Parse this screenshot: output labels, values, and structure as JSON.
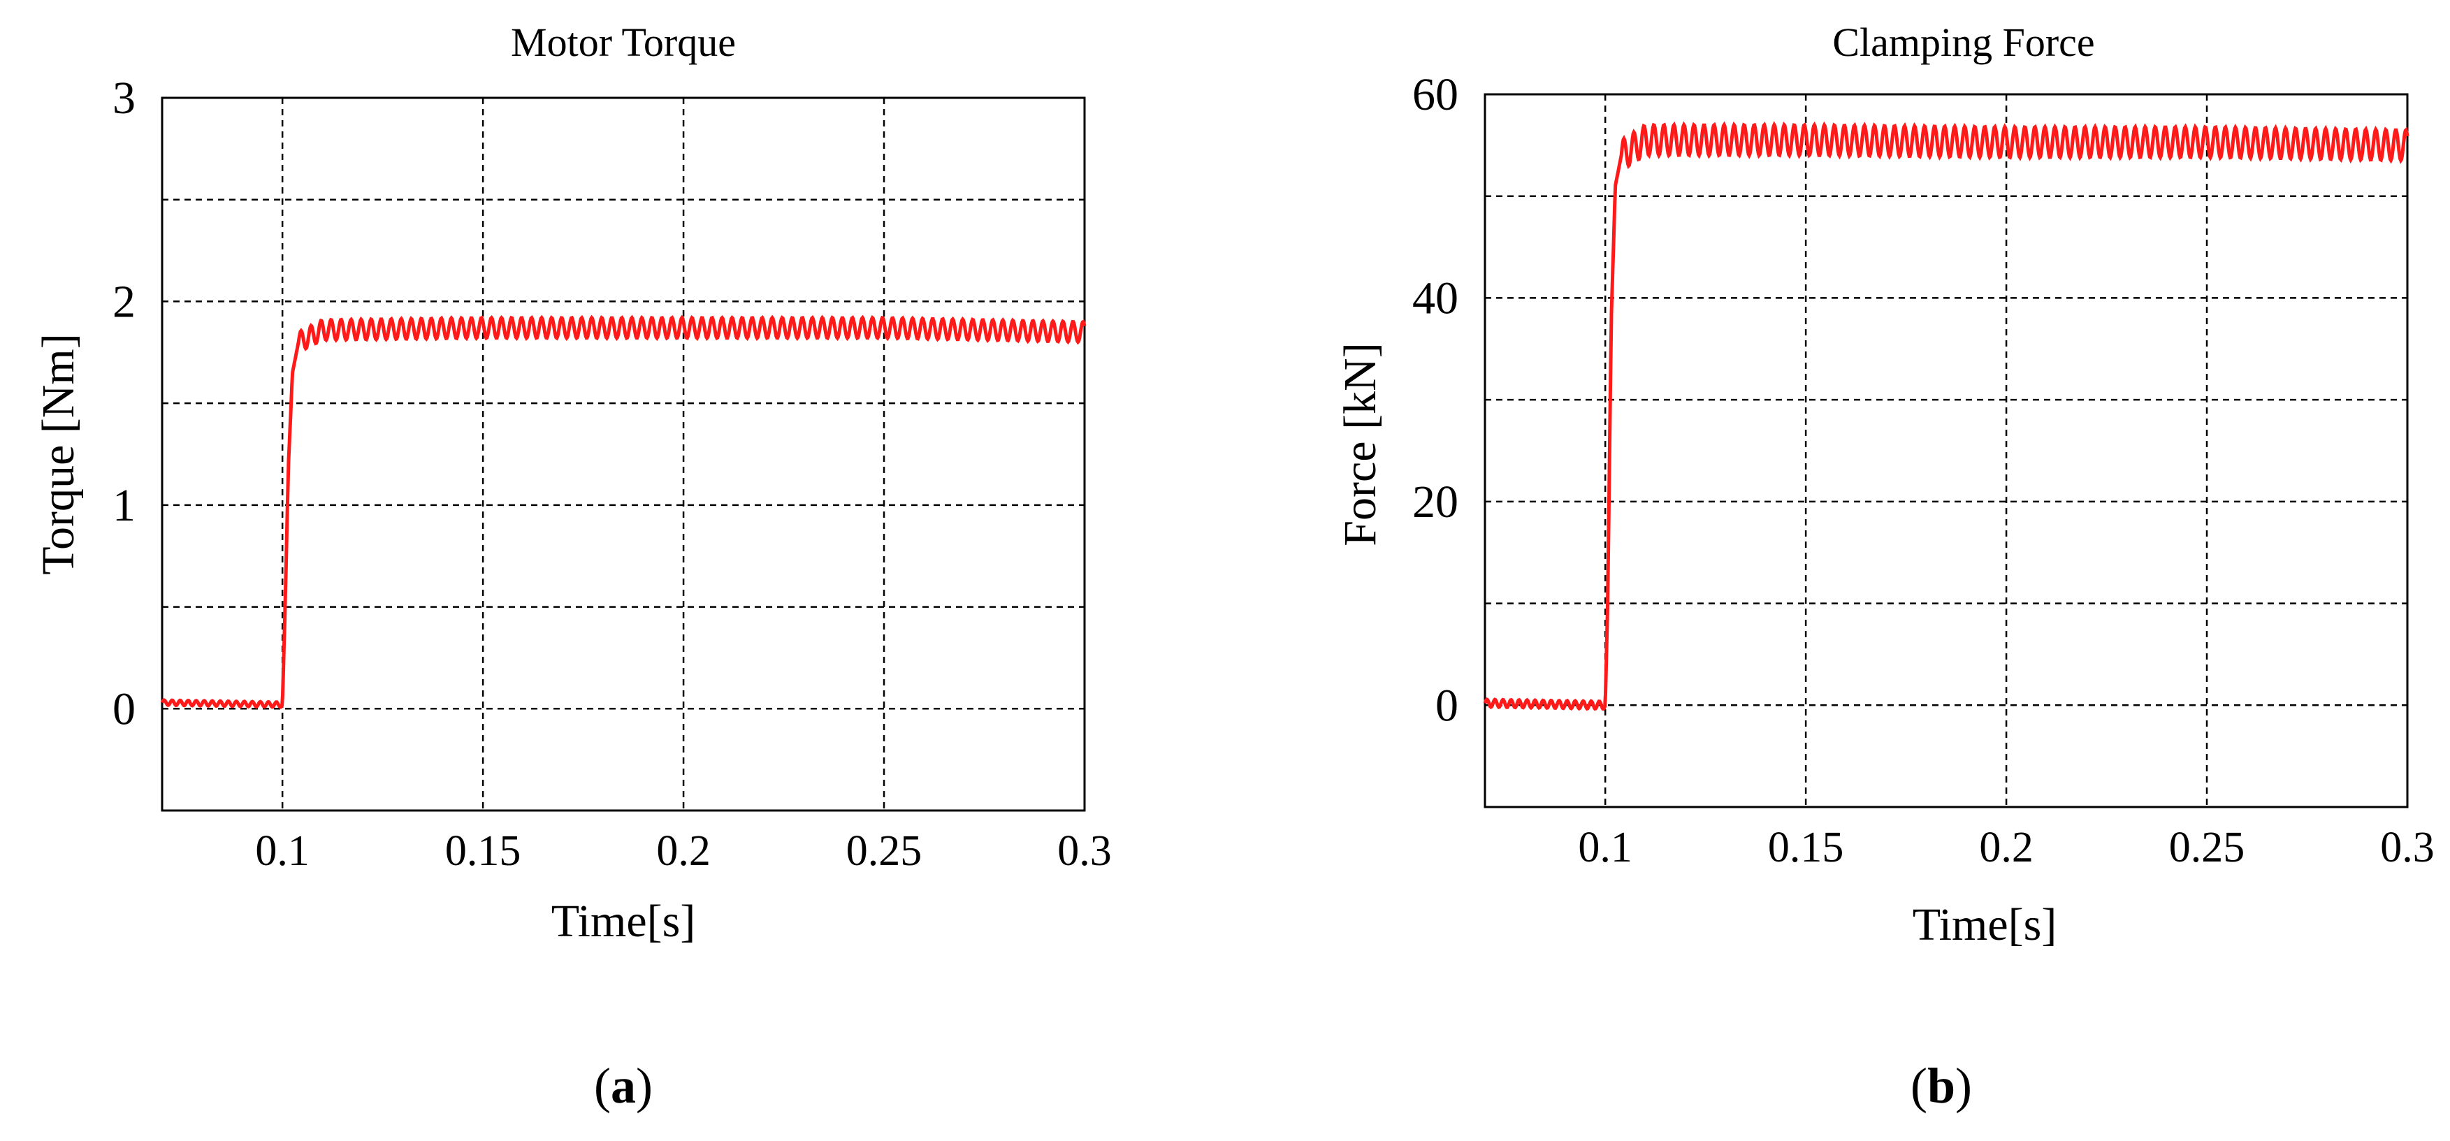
{
  "chart_data": [
    {
      "type": "line",
      "title": "Motor Torque",
      "xlabel": "Time[s]",
      "ylabel": "Torque [Nm]",
      "xlim": [
        0.07,
        0.3
      ],
      "ylim": [
        -0.5,
        3
      ],
      "xticks": [
        0.1,
        0.15,
        0.2,
        0.25,
        0.3
      ],
      "xtick_labels": [
        "0.1",
        "0.15",
        "0.2",
        "0.25",
        "0.3"
      ],
      "yticks": [
        0,
        1,
        2,
        3
      ],
      "ytick_labels": [
        "0",
        "1",
        "2",
        "3"
      ],
      "grid": true,
      "grid_x": [
        0.1,
        0.15,
        0.2,
        0.25
      ],
      "grid_y": [
        0,
        0.5,
        1,
        1.5,
        2,
        2.5
      ],
      "color": "#ff1a1a",
      "series": [
        {
          "x": [
            0.07,
            0.1,
            0.1006,
            0.1015,
            0.1025,
            0.104,
            0.11,
            0.15,
            0.2,
            0.25,
            0.3
          ],
          "y": [
            0.03,
            0.02,
            0.45,
            1.2,
            1.65,
            1.8,
            1.86,
            1.87,
            1.87,
            1.87,
            1.85
          ],
          "ripple_amplitude": 0.05,
          "ripple_start": 0.104,
          "ripple_period": 0.0025
        }
      ],
      "caption": "a"
    },
    {
      "type": "line",
      "title": "Clamping Force",
      "xlabel": "Time[s]",
      "ylabel": "Force [kN]",
      "xlim": [
        0.07,
        0.3
      ],
      "ylim": [
        -10,
        60
      ],
      "xticks": [
        0.1,
        0.15,
        0.2,
        0.25,
        0.3
      ],
      "xtick_labels": [
        "0.1",
        "0.15",
        "0.2",
        "0.25",
        "0.3"
      ],
      "yticks": [
        0,
        20,
        40,
        60
      ],
      "ytick_labels": [
        "0",
        "20",
        "40",
        "60"
      ],
      "grid": true,
      "grid_x": [
        0.1,
        0.15,
        0.2,
        0.25
      ],
      "grid_y": [
        0,
        10,
        20,
        30,
        40,
        50
      ],
      "color": "#ff1a1a",
      "series": [
        {
          "x": [
            0.07,
            0.1,
            0.1006,
            0.1015,
            0.1025,
            0.104,
            0.11,
            0.15,
            0.2,
            0.25,
            0.3
          ],
          "y": [
            0.2,
            0.0,
            10,
            38,
            51,
            54,
            55.5,
            55.5,
            55.3,
            55.3,
            55.0
          ],
          "ripple_amplitude": 1.5,
          "ripple_start": 0.104,
          "ripple_period": 0.0025
        }
      ],
      "caption": "b"
    }
  ]
}
